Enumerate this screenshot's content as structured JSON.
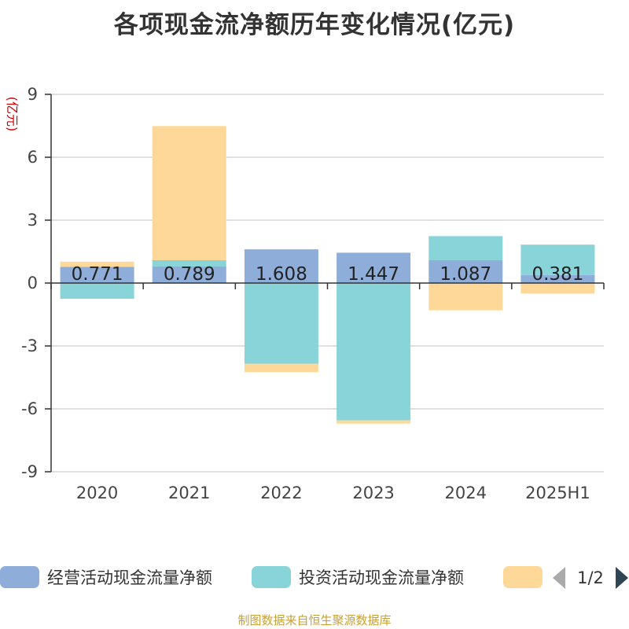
{
  "chart_data": {
    "type": "bar",
    "stacked": true,
    "title": "各项现金流净额历年变化情况(亿元)",
    "ylabel": "(亿元)",
    "ylim": [
      -9,
      9
    ],
    "yticks": [
      9,
      6,
      3,
      0,
      -3,
      -6,
      -9
    ],
    "grid": true,
    "categories": [
      "2020",
      "2021",
      "2022",
      "2023",
      "2024",
      "2025H1"
    ],
    "series": [
      {
        "name": "经营活动现金流量净额",
        "color": "#8eadd9",
        "values": [
          0.771,
          0.789,
          1.608,
          1.447,
          1.087,
          0.381
        ]
      },
      {
        "name": "投资活动现金流量净额",
        "color": "#88d4d8",
        "values": [
          -0.75,
          0.3,
          -3.85,
          -6.55,
          1.15,
          1.45
        ]
      },
      {
        "name": "",
        "color": "#fdd898",
        "values": [
          0.25,
          6.4,
          -0.4,
          -0.15,
          -1.3,
          -0.5
        ]
      }
    ],
    "data_labels": [
      "0.771",
      "0.789",
      "1.608",
      "1.447",
      "1.087",
      "0.381"
    ],
    "legend": {
      "position": "bottom",
      "page": "1/2"
    }
  },
  "source_note": "制图数据来自恒生聚源数据库"
}
